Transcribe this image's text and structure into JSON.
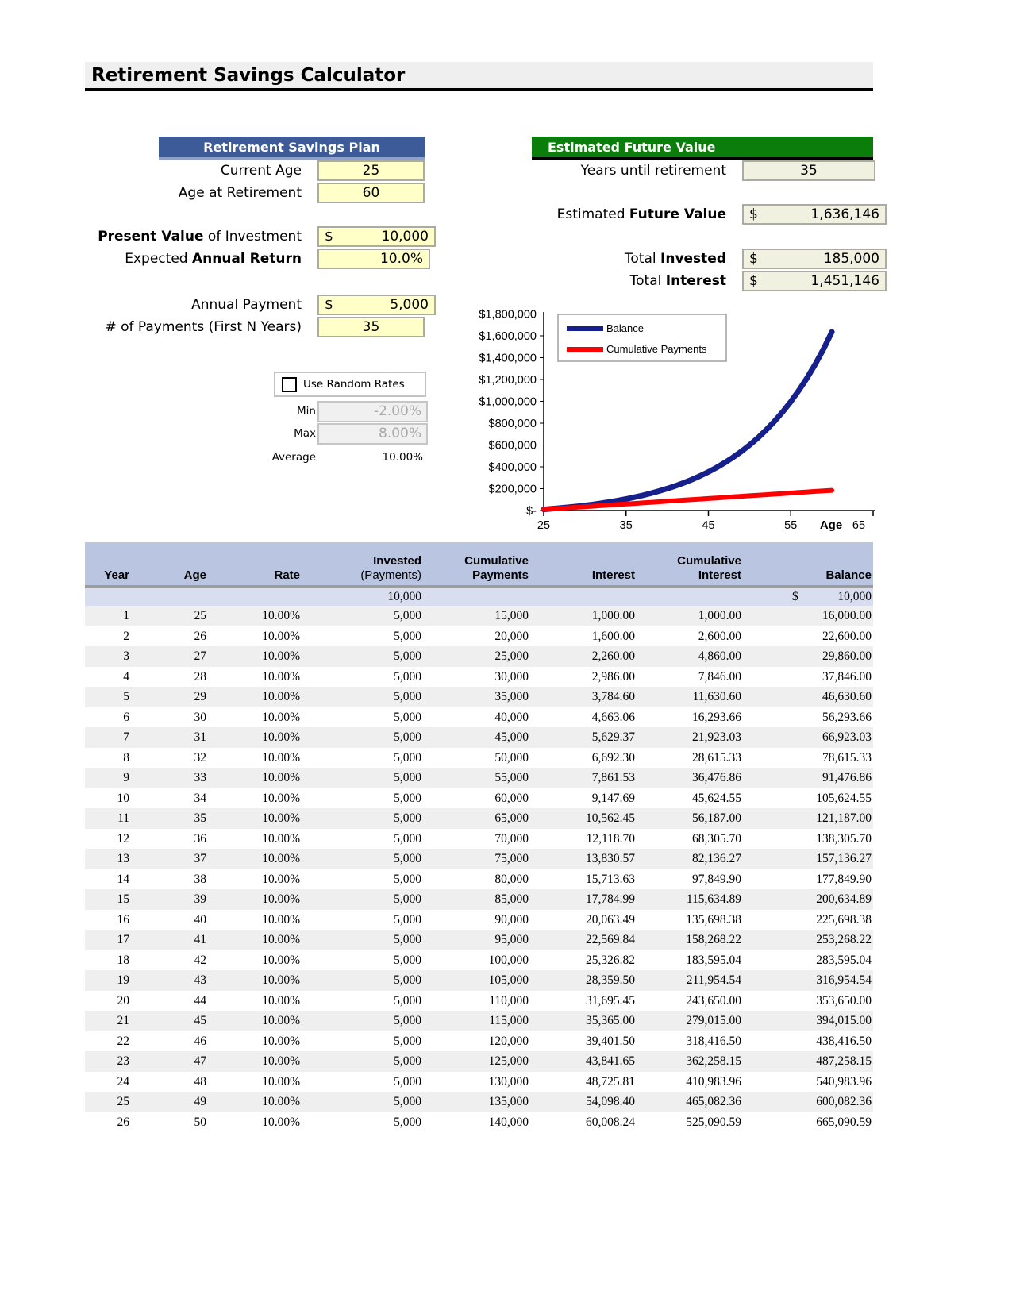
{
  "title": "Retirement Savings Calculator",
  "plan": {
    "header": "Retirement Savings Plan",
    "current_age": {
      "label": "Current Age",
      "value": "25"
    },
    "age_at_retirement": {
      "label": "Age at Retirement",
      "value": "60"
    },
    "present_value": {
      "label_bold": "Present Value",
      "label_rest": " of Investment",
      "symbol": "$",
      "value": "10,000"
    },
    "annual_return": {
      "label_pre": "Expected ",
      "label_bold": "Annual Return",
      "value": "10.0%"
    },
    "annual_payment": {
      "label": "Annual Payment",
      "symbol": "$",
      "value": "5,000"
    },
    "num_payments": {
      "label": "# of Payments (First N Years)",
      "value": "35"
    }
  },
  "random": {
    "checkbox_label": "Use Random Rates",
    "checked": false,
    "min_label": "Min",
    "min_value": "-2.00%",
    "max_label": "Max",
    "max_value": "8.00%",
    "avg_label": "Average",
    "avg_value": "10.00%"
  },
  "future": {
    "header": "Estimated Future Value",
    "years": {
      "label": "Years until retirement",
      "value": "35"
    },
    "efv": {
      "label_pre": "Estimated ",
      "label_bold": "Future Value",
      "symbol": "$",
      "value": "1,636,146"
    },
    "invested": {
      "label_pre": "Total ",
      "label_bold": "Invested",
      "symbol": "$",
      "value": "185,000"
    },
    "interest": {
      "label_pre": "Total ",
      "label_bold": "Interest",
      "symbol": "$",
      "value": "1,451,146"
    }
  },
  "chart_data": {
    "type": "line",
    "x_axis_title": "Age",
    "x_min": 25,
    "x_max": 65,
    "x_ticks": [
      25,
      35,
      45,
      55,
      65
    ],
    "y_max": 1800000,
    "y_tick_labels": [
      "$-",
      "$200,000",
      "$400,000",
      "$600,000",
      "$800,000",
      "$1,000,000",
      "$1,200,000",
      "$1,400,000",
      "$1,600,000",
      "$1,800,000"
    ],
    "legend_position": "top-left",
    "x": [
      25,
      26,
      27,
      28,
      29,
      30,
      31,
      32,
      33,
      34,
      35,
      36,
      37,
      38,
      39,
      40,
      41,
      42,
      43,
      44,
      45,
      46,
      47,
      48,
      49,
      50,
      51,
      52,
      53,
      54,
      55,
      56,
      57,
      58,
      59,
      60
    ],
    "series": [
      {
        "name": "Balance",
        "color": "#16208C",
        "values": [
          10000,
          16000,
          22600,
          29860,
          37846,
          46630.6,
          56293.66,
          66923.03,
          78615.33,
          91476.86,
          105624.55,
          121187.0,
          138305.7,
          157136.27,
          177849.9,
          200634.89,
          225698.38,
          253268.22,
          283595.04,
          316954.54,
          353650.0,
          394015.0,
          438416.5,
          487258.15,
          540983.96,
          600082.36,
          665090.59,
          736599.65,
          815259.61,
          901785.57,
          996964.13,
          1101660.55,
          1216826.6,
          1343509.26,
          1482860.19,
          1636146.21
        ]
      },
      {
        "name": "Cumulative Payments",
        "color": "#FF0000",
        "values": [
          10000,
          15000,
          20000,
          25000,
          30000,
          35000,
          40000,
          45000,
          50000,
          55000,
          60000,
          65000,
          70000,
          75000,
          80000,
          85000,
          90000,
          95000,
          100000,
          105000,
          110000,
          115000,
          120000,
          125000,
          130000,
          135000,
          140000,
          145000,
          150000,
          155000,
          160000,
          165000,
          170000,
          175000,
          180000,
          185000
        ]
      }
    ]
  },
  "table": {
    "headers": [
      {
        "l2": "Year"
      },
      {
        "l2": "Age"
      },
      {
        "l2": "Rate"
      },
      {
        "l1": "Invested",
        "l2": "(Payments)",
        "l2_normal": true
      },
      {
        "l1": "Cumulative",
        "l2": "Payments"
      },
      {
        "l2": "Interest"
      },
      {
        "l1": "Cumulative",
        "l2": "Interest"
      },
      {
        "l2": "Balance"
      }
    ],
    "initial_row": {
      "invested": "10,000",
      "currency_symbol": "$",
      "balance": "10,000"
    },
    "rows": [
      [
        "1",
        "25",
        "10.00%",
        "5,000",
        "15,000",
        "1,000.00",
        "1,000.00",
        "16,000.00"
      ],
      [
        "2",
        "26",
        "10.00%",
        "5,000",
        "20,000",
        "1,600.00",
        "2,600.00",
        "22,600.00"
      ],
      [
        "3",
        "27",
        "10.00%",
        "5,000",
        "25,000",
        "2,260.00",
        "4,860.00",
        "29,860.00"
      ],
      [
        "4",
        "28",
        "10.00%",
        "5,000",
        "30,000",
        "2,986.00",
        "7,846.00",
        "37,846.00"
      ],
      [
        "5",
        "29",
        "10.00%",
        "5,000",
        "35,000",
        "3,784.60",
        "11,630.60",
        "46,630.60"
      ],
      [
        "6",
        "30",
        "10.00%",
        "5,000",
        "40,000",
        "4,663.06",
        "16,293.66",
        "56,293.66"
      ],
      [
        "7",
        "31",
        "10.00%",
        "5,000",
        "45,000",
        "5,629.37",
        "21,923.03",
        "66,923.03"
      ],
      [
        "8",
        "32",
        "10.00%",
        "5,000",
        "50,000",
        "6,692.30",
        "28,615.33",
        "78,615.33"
      ],
      [
        "9",
        "33",
        "10.00%",
        "5,000",
        "55,000",
        "7,861.53",
        "36,476.86",
        "91,476.86"
      ],
      [
        "10",
        "34",
        "10.00%",
        "5,000",
        "60,000",
        "9,147.69",
        "45,624.55",
        "105,624.55"
      ],
      [
        "11",
        "35",
        "10.00%",
        "5,000",
        "65,000",
        "10,562.45",
        "56,187.00",
        "121,187.00"
      ],
      [
        "12",
        "36",
        "10.00%",
        "5,000",
        "70,000",
        "12,118.70",
        "68,305.70",
        "138,305.70"
      ],
      [
        "13",
        "37",
        "10.00%",
        "5,000",
        "75,000",
        "13,830.57",
        "82,136.27",
        "157,136.27"
      ],
      [
        "14",
        "38",
        "10.00%",
        "5,000",
        "80,000",
        "15,713.63",
        "97,849.90",
        "177,849.90"
      ],
      [
        "15",
        "39",
        "10.00%",
        "5,000",
        "85,000",
        "17,784.99",
        "115,634.89",
        "200,634.89"
      ],
      [
        "16",
        "40",
        "10.00%",
        "5,000",
        "90,000",
        "20,063.49",
        "135,698.38",
        "225,698.38"
      ],
      [
        "17",
        "41",
        "10.00%",
        "5,000",
        "95,000",
        "22,569.84",
        "158,268.22",
        "253,268.22"
      ],
      [
        "18",
        "42",
        "10.00%",
        "5,000",
        "100,000",
        "25,326.82",
        "183,595.04",
        "283,595.04"
      ],
      [
        "19",
        "43",
        "10.00%",
        "5,000",
        "105,000",
        "28,359.50",
        "211,954.54",
        "316,954.54"
      ],
      [
        "20",
        "44",
        "10.00%",
        "5,000",
        "110,000",
        "31,695.45",
        "243,650.00",
        "353,650.00"
      ],
      [
        "21",
        "45",
        "10.00%",
        "5,000",
        "115,000",
        "35,365.00",
        "279,015.00",
        "394,015.00"
      ],
      [
        "22",
        "46",
        "10.00%",
        "5,000",
        "120,000",
        "39,401.50",
        "318,416.50",
        "438,416.50"
      ],
      [
        "23",
        "47",
        "10.00%",
        "5,000",
        "125,000",
        "43,841.65",
        "362,258.15",
        "487,258.15"
      ],
      [
        "24",
        "48",
        "10.00%",
        "5,000",
        "130,000",
        "48,725.81",
        "410,983.96",
        "540,983.96"
      ],
      [
        "25",
        "49",
        "10.00%",
        "5,000",
        "135,000",
        "54,098.40",
        "465,082.36",
        "600,082.36"
      ],
      [
        "26",
        "50",
        "10.00%",
        "5,000",
        "140,000",
        "60,008.24",
        "525,090.59",
        "665,090.59"
      ]
    ]
  }
}
